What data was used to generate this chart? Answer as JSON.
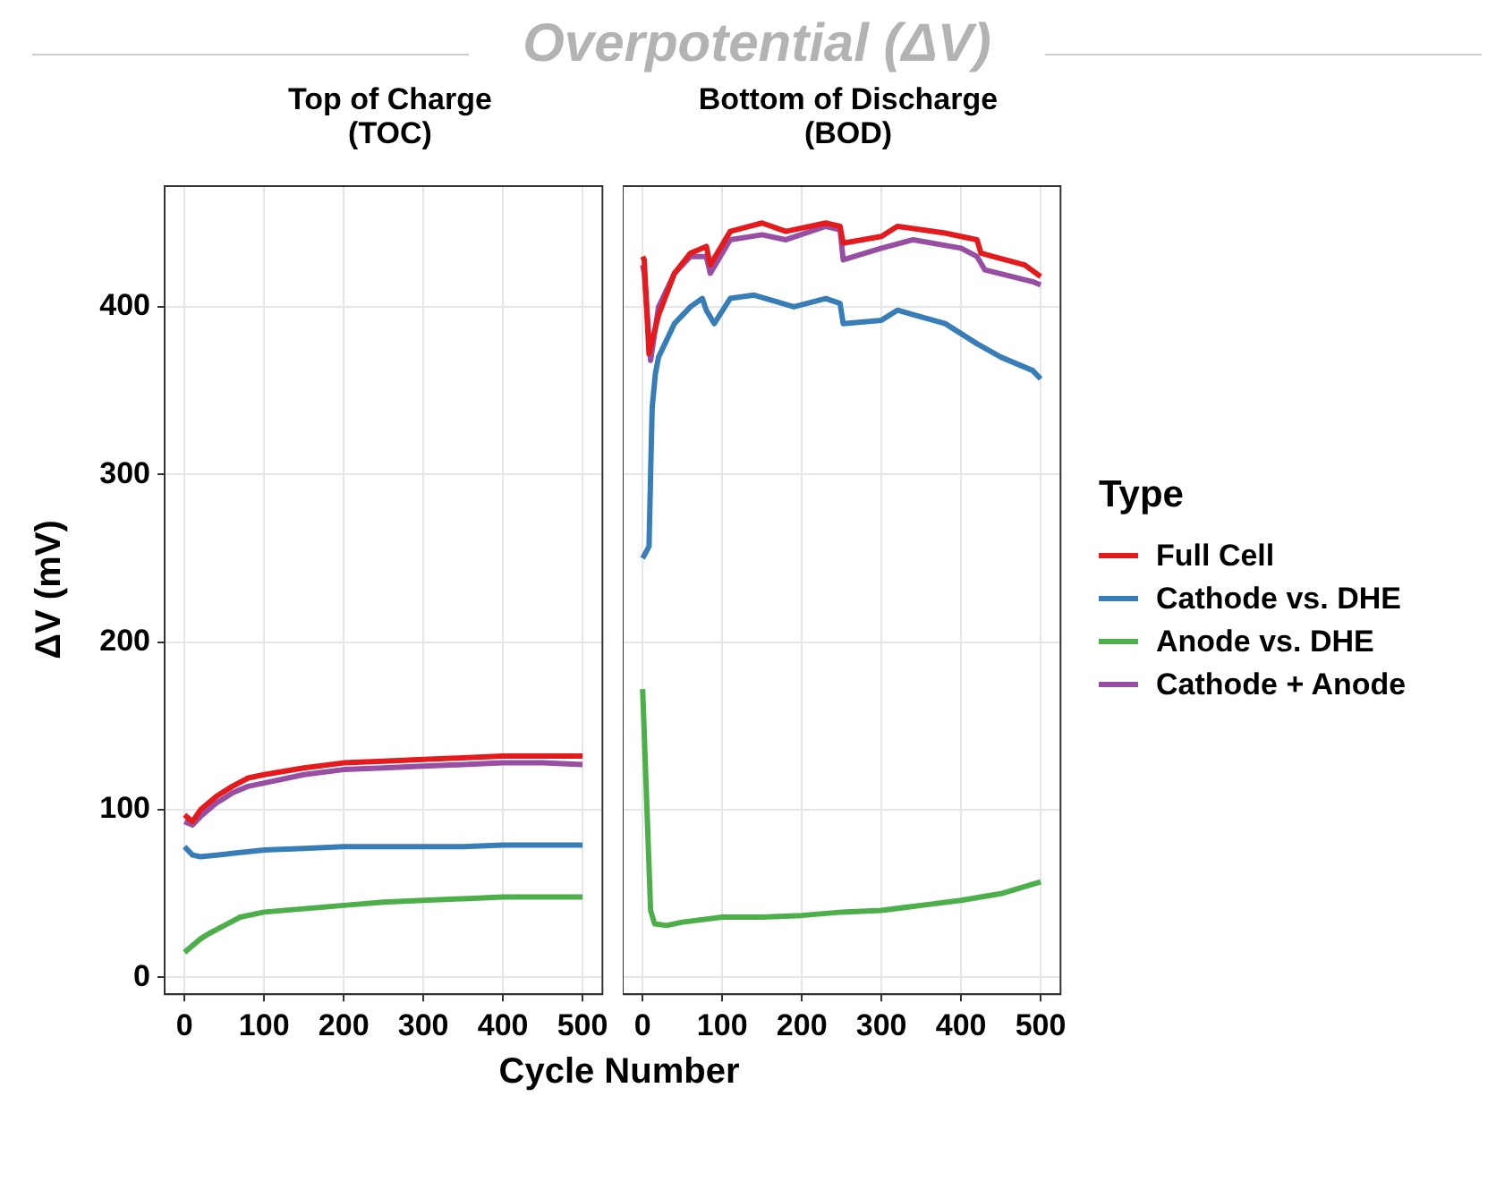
{
  "chart_data": [
    {
      "type": "line",
      "title": "Top of Charge\n(TOC)",
      "xlabel": "Cycle Number",
      "ylabel": "ΔV (mV)",
      "annotations": [
        "Overpotential (ΔV)"
      ],
      "xlim": [
        -25,
        525
      ],
      "xticks": [
        0,
        100,
        200,
        300,
        400,
        500
      ],
      "ylim": [
        -10,
        472
      ],
      "yticks": [
        0,
        100,
        200,
        300,
        400
      ],
      "grid": true,
      "legend": "right",
      "legend_title": "Type",
      "line_style": "solid",
      "marker": "none",
      "series": [
        {
          "name": "Full Cell",
          "color": "#e41a1c",
          "x": [
            0,
            10,
            20,
            40,
            60,
            80,
            100,
            150,
            200,
            250,
            300,
            350,
            400,
            450,
            500
          ],
          "values": [
            97,
            93,
            100,
            108,
            114,
            119,
            121,
            125,
            128,
            129,
            130,
            131,
            132,
            132,
            132
          ]
        },
        {
          "name": "Cathode vs. DHE",
          "color": "#377eb8",
          "x": [
            0,
            10,
            20,
            40,
            60,
            100,
            150,
            200,
            250,
            300,
            350,
            400,
            450,
            500
          ],
          "values": [
            78,
            73,
            72,
            73,
            74,
            76,
            77,
            78,
            78,
            78,
            78,
            79,
            79,
            79
          ]
        },
        {
          "name": "Anode vs. DHE",
          "color": "#4daf4a",
          "x": [
            0,
            10,
            20,
            30,
            50,
            70,
            100,
            150,
            200,
            250,
            300,
            350,
            400,
            450,
            500
          ],
          "values": [
            15,
            19,
            23,
            26,
            31,
            36,
            39,
            41,
            43,
            45,
            46,
            47,
            48,
            48,
            48
          ]
        },
        {
          "name": "Cathode + Anode",
          "color": "#984ea3",
          "x": [
            0,
            10,
            20,
            40,
            60,
            80,
            100,
            150,
            200,
            250,
            300,
            350,
            400,
            450,
            500
          ],
          "values": [
            93,
            91,
            96,
            104,
            110,
            114,
            116,
            121,
            124,
            125,
            126,
            127,
            128,
            128,
            127
          ]
        }
      ]
    },
    {
      "type": "line",
      "title": "Bottom of Discharge\n(BOD)",
      "xlim": [
        -25,
        525
      ],
      "xticks": [
        0,
        100,
        200,
        300,
        400,
        500
      ],
      "ylim": [
        -10,
        472
      ],
      "yticks": [
        0,
        100,
        200,
        300,
        400
      ],
      "grid": true,
      "tick_labels": "x",
      "line_style": "solid",
      "marker": "none",
      "series": [
        {
          "color": "#e41a1c",
          "x": [
            0,
            2,
            8,
            20,
            40,
            60,
            80,
            85,
            110,
            150,
            180,
            230,
            248,
            252,
            300,
            320,
            380,
            420,
            425,
            440,
            480,
            500
          ],
          "values": [
            430,
            428,
            372,
            395,
            420,
            432,
            436,
            425,
            445,
            450,
            445,
            450,
            448,
            438,
            442,
            448,
            444,
            440,
            432,
            430,
            425,
            418
          ]
        },
        {
          "color": "#377eb8",
          "x": [
            0,
            8,
            10,
            12,
            16,
            20,
            40,
            60,
            75,
            80,
            90,
            110,
            140,
            190,
            230,
            248,
            252,
            300,
            320,
            380,
            420,
            450,
            490,
            500
          ],
          "values": [
            250,
            257,
            300,
            340,
            360,
            370,
            390,
            400,
            405,
            398,
            390,
            405,
            407,
            400,
            405,
            402,
            390,
            392,
            398,
            390,
            378,
            370,
            362,
            357
          ]
        },
        {
          "color": "#4daf4a",
          "x": [
            0,
            10,
            15,
            30,
            50,
            100,
            150,
            200,
            250,
            300,
            350,
            400,
            450,
            500
          ],
          "values": [
            172,
            40,
            32,
            31,
            33,
            36,
            36,
            37,
            39,
            40,
            43,
            46,
            50,
            57
          ]
        },
        {
          "color": "#984ea3",
          "x": [
            0,
            2,
            10,
            20,
            40,
            60,
            80,
            85,
            110,
            150,
            180,
            230,
            248,
            252,
            300,
            340,
            400,
            420,
            430,
            490,
            500
          ],
          "values": [
            425,
            420,
            368,
            400,
            420,
            430,
            430,
            420,
            440,
            443,
            440,
            448,
            446,
            428,
            435,
            440,
            435,
            430,
            422,
            415,
            413
          ]
        }
      ]
    }
  ]
}
